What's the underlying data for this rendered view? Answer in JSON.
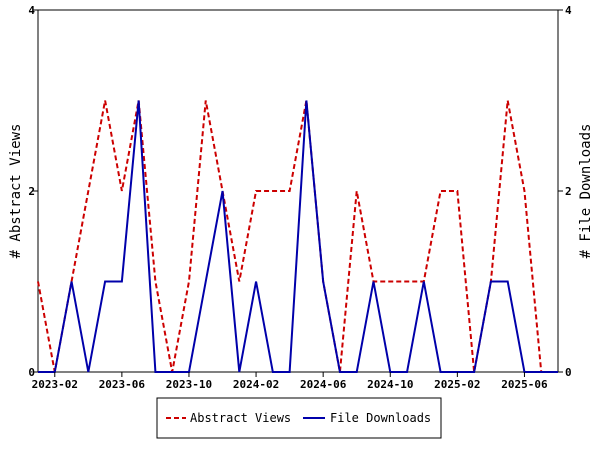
{
  "chart_data": {
    "type": "line",
    "title": "",
    "xlabel": "",
    "ylabel": "# Abstract Views",
    "y2label": "# File Downloads",
    "ylim": [
      0,
      4
    ],
    "y2lim": [
      0,
      4
    ],
    "yticks": [
      "0",
      "2",
      "4"
    ],
    "y2ticks": [
      "0",
      "2",
      "4"
    ],
    "x": [
      "2023-01",
      "2023-02",
      "2023-03",
      "2023-04",
      "2023-05",
      "2023-06",
      "2023-07",
      "2023-08",
      "2023-09",
      "2023-10",
      "2023-11",
      "2023-12",
      "2024-01",
      "2024-02",
      "2024-03",
      "2024-04",
      "2024-05",
      "2024-06",
      "2024-07",
      "2024-08",
      "2024-09",
      "2024-10",
      "2024-11",
      "2024-12",
      "2025-01",
      "2025-02",
      "2025-03",
      "2025-04",
      "2025-05",
      "2025-06",
      "2025-07",
      "2025-08"
    ],
    "xtick_labels": [
      "2023-02",
      "2023-06",
      "2023-10",
      "2024-02",
      "2024-06",
      "2024-10",
      "2025-02",
      "2025-06"
    ],
    "xtick_index": [
      1,
      5,
      9,
      13,
      17,
      21,
      25,
      29
    ],
    "grid": false,
    "legend": "bottom",
    "series": [
      {
        "name": "Abstract Views",
        "color": "#cc0000",
        "dash": "dashed",
        "axis": "left",
        "values": [
          1,
          0,
          1,
          2,
          3,
          2,
          3,
          1,
          0,
          1,
          3,
          2,
          1,
          2,
          2,
          2,
          3,
          1,
          0,
          2,
          1,
          1,
          1,
          1,
          2,
          2,
          0,
          1,
          3,
          2,
          0,
          0
        ]
      },
      {
        "name": "File Downloads",
        "color": "#0000aa",
        "dash": "solid",
        "axis": "right",
        "values": [
          0,
          0,
          1,
          0,
          1,
          1,
          3,
          0,
          0,
          0,
          1,
          2,
          0,
          1,
          0,
          0,
          3,
          1,
          0,
          0,
          1,
          0,
          0,
          1,
          0,
          0,
          0,
          1,
          1,
          0,
          0,
          0
        ]
      }
    ]
  }
}
